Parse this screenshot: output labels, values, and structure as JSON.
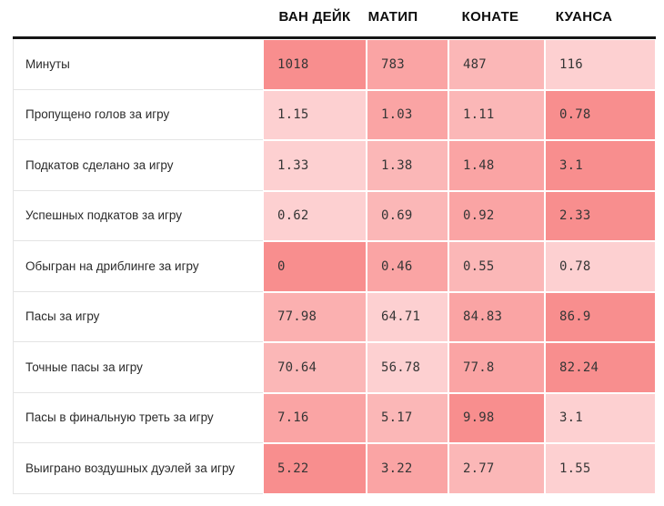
{
  "palette": {
    "heat_rank_1_strongest": "#f88e8e",
    "heat_rank_2": "#faa4a4",
    "heat_rank_3": "#fbb7b7",
    "heat_rank_4_lightest": "#fdd0d1",
    "header_rule": "#161616",
    "row_divider": "#e4e4e4",
    "label_text": "#2b2b2b",
    "value_text": "#363636",
    "background": "#ffffff"
  },
  "table": {
    "columns": [
      "ВАН ДЕЙК",
      "МАТИП",
      "КОНАТЕ",
      "КУАНСА"
    ],
    "rows": [
      {
        "label": "Минуты",
        "cells": [
          {
            "value": "1018",
            "heat_rank": 1,
            "color": "#f88e8e"
          },
          {
            "value": "783",
            "heat_rank": 2,
            "color": "#faa4a4"
          },
          {
            "value": "487",
            "heat_rank": 3,
            "color": "#fbb7b7"
          },
          {
            "value": "116",
            "heat_rank": 4,
            "color": "#fdd0d1"
          }
        ]
      },
      {
        "label": "Пропущено голов за игру",
        "cells": [
          {
            "value": "1.15",
            "heat_rank": 4,
            "color": "#fdd0d1"
          },
          {
            "value": "1.03",
            "heat_rank": 2,
            "color": "#faa4a4"
          },
          {
            "value": "1.11",
            "heat_rank": 3,
            "color": "#fbb7b7"
          },
          {
            "value": "0.78",
            "heat_rank": 1,
            "color": "#f88e8e"
          }
        ]
      },
      {
        "label": "Подкатов сделано за игру",
        "cells": [
          {
            "value": "1.33",
            "heat_rank": 4,
            "color": "#fdd0d1"
          },
          {
            "value": "1.38",
            "heat_rank": 3,
            "color": "#fbb7b7"
          },
          {
            "value": "1.48",
            "heat_rank": 2,
            "color": "#faa4a4"
          },
          {
            "value": "3.1",
            "heat_rank": 1,
            "color": "#f88e8e"
          }
        ]
      },
      {
        "label": "Успешных подкатов за игру",
        "cells": [
          {
            "value": "0.62",
            "heat_rank": 4,
            "color": "#fdd0d1"
          },
          {
            "value": "0.69",
            "heat_rank": 3,
            "color": "#fbb7b7"
          },
          {
            "value": "0.92",
            "heat_rank": 2,
            "color": "#faa4a4"
          },
          {
            "value": "2.33",
            "heat_rank": 1,
            "color": "#f88e8e"
          }
        ]
      },
      {
        "label": "Обыгран на дриблинге за игру",
        "cells": [
          {
            "value": "0",
            "heat_rank": 1,
            "color": "#f88e8e"
          },
          {
            "value": "0.46",
            "heat_rank": 2,
            "color": "#faa4a4"
          },
          {
            "value": "0.55",
            "heat_rank": 3,
            "color": "#fbb7b7"
          },
          {
            "value": "0.78",
            "heat_rank": 4,
            "color": "#fdd0d1"
          }
        ]
      },
      {
        "label": "Пасы за игру",
        "cells": [
          {
            "value": "77.98",
            "heat_rank": 3,
            "color": "#fbb0b0"
          },
          {
            "value": "64.71",
            "heat_rank": 4,
            "color": "#fdd0d1"
          },
          {
            "value": "84.83",
            "heat_rank": 2,
            "color": "#faa4a4"
          },
          {
            "value": "86.9",
            "heat_rank": 1,
            "color": "#f88e8e"
          }
        ]
      },
      {
        "label": "Точные пасы за игру",
        "cells": [
          {
            "value": "70.64",
            "heat_rank": 3,
            "color": "#fbb7b7"
          },
          {
            "value": "56.78",
            "heat_rank": 4,
            "color": "#fdd0d1"
          },
          {
            "value": "77.8",
            "heat_rank": 2,
            "color": "#faa4a4"
          },
          {
            "value": "82.24",
            "heat_rank": 1,
            "color": "#f88e8e"
          }
        ]
      },
      {
        "label": "Пасы в финальную треть за игру",
        "cells": [
          {
            "value": "7.16",
            "heat_rank": 2,
            "color": "#faa4a4"
          },
          {
            "value": "5.17",
            "heat_rank": 3,
            "color": "#fbb7b7"
          },
          {
            "value": "9.98",
            "heat_rank": 1,
            "color": "#f88e8e"
          },
          {
            "value": "3.1",
            "heat_rank": 4,
            "color": "#fdd0d1"
          }
        ]
      },
      {
        "label": "Выиграно воздушных дуэлей за игру",
        "cells": [
          {
            "value": "5.22",
            "heat_rank": 1,
            "color": "#f88e8e"
          },
          {
            "value": "3.22",
            "heat_rank": 2,
            "color": "#faa4a4"
          },
          {
            "value": "2.77",
            "heat_rank": 3,
            "color": "#fbb7b7"
          },
          {
            "value": "1.55",
            "heat_rank": 4,
            "color": "#fdd0d1"
          }
        ]
      }
    ]
  },
  "chart_data": {
    "type": "heatmap",
    "title": "",
    "categories": [
      "ВАН ДЕЙК",
      "МАТИП",
      "КОНАТЕ",
      "КУАНСА"
    ],
    "rows": [
      {
        "label": "Минуты",
        "values": [
          1018,
          783,
          487,
          116
        ]
      },
      {
        "label": "Пропущено голов за игру",
        "values": [
          1.15,
          1.03,
          1.11,
          0.78
        ]
      },
      {
        "label": "Подкатов сделано за игру",
        "values": [
          1.33,
          1.38,
          1.48,
          3.1
        ]
      },
      {
        "label": "Успешных подкатов за игру",
        "values": [
          0.62,
          0.69,
          0.92,
          2.33
        ]
      },
      {
        "label": "Обыгран на дриблинге за игру",
        "values": [
          0,
          0.46,
          0.55,
          0.78
        ]
      },
      {
        "label": "Пасы за игру",
        "values": [
          77.98,
          64.71,
          84.83,
          86.9
        ]
      },
      {
        "label": "Точные пасы за игру",
        "values": [
          70.64,
          56.78,
          77.8,
          82.24
        ]
      },
      {
        "label": "Пасы в финальную треть за игру",
        "values": [
          7.16,
          5.17,
          9.98,
          3.1
        ]
      },
      {
        "label": "Выиграно воздушных дуэлей за игру",
        "values": [
          5.22,
          3.22,
          2.77,
          1.55
        ]
      }
    ],
    "legend": "none",
    "grid": "row separators only",
    "color_scale": "per-row rank, 4 discrete pink-to-salmon shades, darkest = best value in row"
  }
}
